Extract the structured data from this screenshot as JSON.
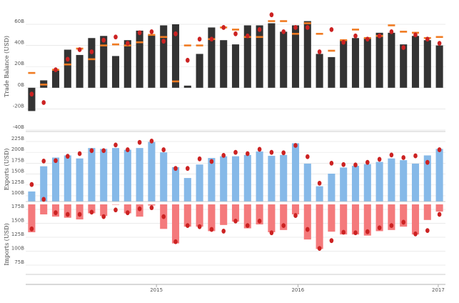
{
  "chart_data": [
    {
      "name": "trade-balance",
      "type": "bar",
      "ylabel": "Trade Balance (USD)",
      "ylim": [
        -40,
        70
      ],
      "yticks": [
        -40,
        -20,
        0,
        20,
        40,
        60
      ],
      "ytick_labels": [
        "-40B",
        "-20B",
        "0B",
        "20B",
        "40B",
        "60B"
      ],
      "bar_color": "#333333",
      "forecast_color": "#f07b22",
      "actual_color": "#cc2222",
      "values": [
        -22,
        7,
        17,
        36,
        31,
        47,
        49,
        30,
        45,
        54,
        50,
        59,
        60,
        2,
        32,
        57,
        45,
        41,
        59,
        59,
        61,
        53,
        59,
        63,
        32,
        29,
        45,
        47,
        47,
        52,
        52,
        41,
        49,
        45,
        40
      ],
      "forecast": [
        14,
        3,
        17,
        22,
        37,
        27,
        40,
        41,
        40,
        43,
        50,
        48,
        6,
        40,
        40,
        46,
        57,
        55,
        48,
        48,
        63,
        63,
        51,
        61,
        51,
        35,
        45,
        55,
        47,
        49,
        59,
        53,
        52,
        47,
        48
      ],
      "actual": [
        -6,
        -14,
        17,
        27,
        36,
        34,
        45,
        48,
        42,
        52,
        53,
        44,
        51,
        26,
        46,
        46,
        57,
        51,
        49,
        55,
        69,
        53,
        57,
        57,
        34,
        55,
        43,
        49,
        46,
        49,
        53,
        38,
        50,
        46,
        42
      ]
    },
    {
      "name": "exports",
      "type": "bar",
      "ylabel": "Exports (USD)",
      "ylim": [
        100,
        232
      ],
      "yticks": [
        100,
        125,
        150,
        175,
        200,
        225
      ],
      "ytick_labels": [
        "100B",
        "125B",
        "150B",
        "175B",
        "200B",
        "225B"
      ],
      "bar_color": "#86b9e8",
      "actual_color": "#cc2222",
      "values": [
        110,
        168,
        188,
        193,
        186,
        210,
        208,
        210,
        206,
        210,
        224,
        200,
        166,
        141,
        172,
        187,
        191,
        191,
        194,
        202,
        192,
        194,
        221,
        174,
        122,
        151,
        165,
        169,
        173,
        178,
        186,
        182,
        174,
        193,
        208
      ],
      "actual": [
        126,
        180,
        181,
        191,
        197,
        204,
        204,
        217,
        206,
        223,
        226,
        206,
        163,
        163,
        185,
        179,
        193,
        200,
        197,
        207,
        200,
        199,
        216,
        190,
        129,
        175,
        172,
        171,
        177,
        184,
        194,
        188,
        192,
        177,
        206
      ]
    },
    {
      "name": "imports",
      "type": "bar",
      "ylabel": "Imports (USD)",
      "ylim": [
        75,
        200
      ],
      "yticks": [
        75,
        100,
        125,
        150,
        175
      ],
      "ytick_labels": [
        "75B",
        "100B",
        "125B",
        "150B",
        "175B"
      ],
      "bar_color": "#f47a7c",
      "actual_color": "#cc2222",
      "values": [
        134,
        166,
        162,
        160,
        157,
        168,
        163,
        184,
        168,
        162,
        182,
        140,
        114,
        144,
        144,
        136,
        147,
        153,
        141,
        148,
        134,
        138,
        166,
        121,
        104,
        135,
        130,
        130,
        128,
        136,
        138,
        144,
        130,
        156,
        171
      ],
      "actual": [
        140,
        193,
        169,
        166,
        166,
        170,
        162,
        174,
        169,
        176,
        178,
        162,
        117,
        146,
        144,
        139,
        136,
        154,
        146,
        154,
        133,
        146,
        164,
        139,
        105,
        119,
        134,
        133,
        135,
        142,
        146,
        152,
        131,
        137,
        166
      ]
    }
  ],
  "x_axis": {
    "labels": [
      {
        "text": "2015",
        "index": 10.9
      },
      {
        "text": "2016",
        "index": 22.7
      },
      {
        "text": "2017",
        "index": 34.4
      }
    ]
  }
}
